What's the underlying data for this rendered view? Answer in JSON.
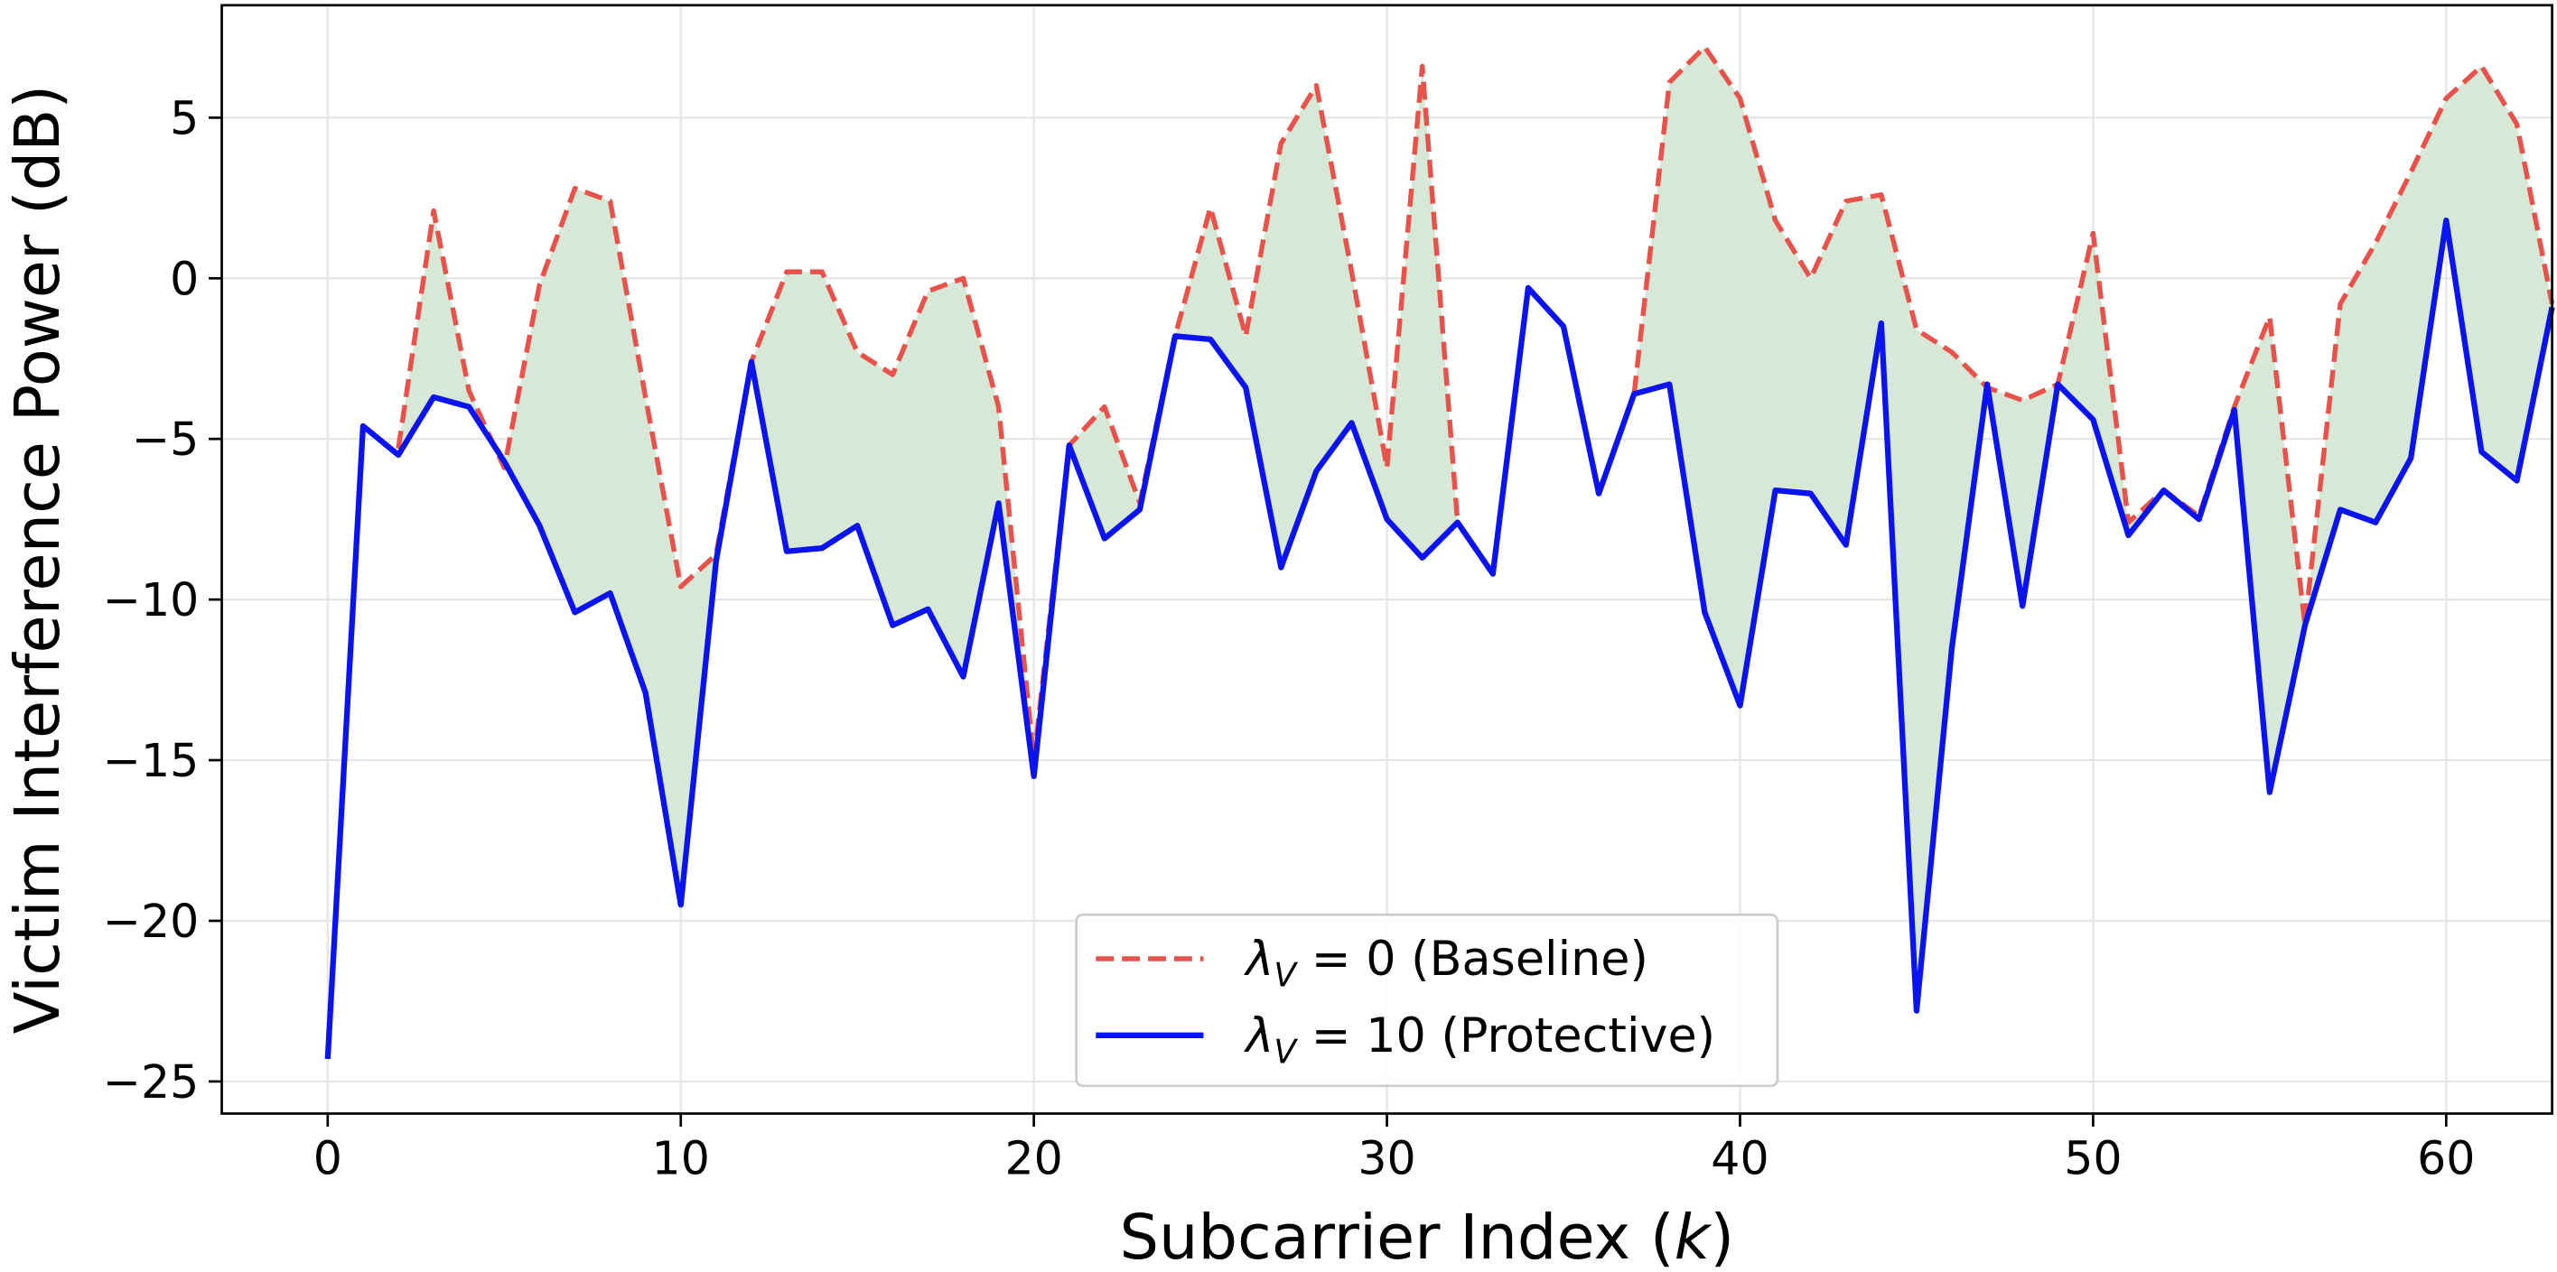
{
  "chart_data": {
    "type": "line",
    "xlabel": "Subcarrier Index (k)",
    "xlabel_parts": {
      "prefix": "Subcarrier Index (",
      "var": "k",
      "suffix": ")"
    },
    "ylabel": "Victim Interference Power (dB)",
    "xlim": [
      -3,
      63
    ],
    "ylim": [
      -26,
      8.5
    ],
    "xticks": [
      0,
      10,
      20,
      30,
      40,
      50,
      60
    ],
    "yticks": [
      5,
      0,
      -5,
      -10,
      -15,
      -20,
      -25
    ],
    "xtick_labels": [
      "0",
      "10",
      "20",
      "30",
      "40",
      "50",
      "60"
    ],
    "ytick_labels": [
      "5",
      "0",
      "−5",
      "−10",
      "−15",
      "−20",
      "−25"
    ],
    "grid": true,
    "legend_position": "lower center",
    "fill_between": {
      "color": "#d5e8d4",
      "note_region": "between baseline and protective where baseline is above"
    },
    "series": [
      {
        "name": "λV = 0 (Baseline)",
        "legend": {
          "sym": "λ",
          "sub": "V",
          "value": " = 0",
          "desc": " (Baseline)"
        },
        "color": "#e8524a",
        "style": "dashed",
        "x_start": 2,
        "values": [
          -5.3,
          2.1,
          -3.5,
          -5.9,
          -0.2,
          2.8,
          2.4,
          -3.7,
          -9.6,
          -8.6,
          -2.6,
          0.2,
          0.2,
          -2.3,
          -3.0,
          -0.4,
          0.0,
          -4.0,
          -15.0,
          -5.2,
          -4.0,
          -7.0,
          -1.8,
          2.2,
          -1.8,
          4.2,
          6.0,
          0.2,
          -5.9,
          6.6,
          -7.6,
          -9.2,
          -0.3,
          -1.5,
          -6.7,
          -3.6,
          6.1,
          7.2,
          5.6,
          1.8,
          0.0,
          2.4,
          2.6,
          -1.6,
          -2.3,
          -3.4,
          -3.8,
          -3.3,
          1.4,
          -7.6,
          -6.6,
          -7.4,
          -4.0,
          -1.2,
          -10.8,
          -0.8,
          1.1,
          3.3,
          5.6,
          6.6,
          4.8,
          -0.8
        ]
      },
      {
        "name": "λV = 10 (Protective)",
        "legend": {
          "sym": "λ",
          "sub": "V",
          "value": " = 10",
          "desc": " (Protective)"
        },
        "color": "#0a14f0",
        "style": "solid",
        "x_start": 0,
        "values": [
          -24.3,
          -4.6,
          -5.5,
          -3.7,
          -4.0,
          -5.7,
          -7.7,
          -10.4,
          -9.8,
          -12.9,
          -19.5,
          -8.8,
          -2.6,
          -8.5,
          -8.4,
          -7.7,
          -10.8,
          -10.3,
          -12.4,
          -7.0,
          -15.5,
          -5.2,
          -8.1,
          -7.2,
          -1.8,
          -1.9,
          -3.4,
          -9.0,
          -6.0,
          -4.5,
          -7.5,
          -8.7,
          -7.6,
          -9.2,
          -0.3,
          -1.5,
          -6.7,
          -3.6,
          -3.3,
          -10.4,
          -13.3,
          -6.6,
          -6.7,
          -8.3,
          -1.4,
          -22.8,
          -11.5,
          -3.3,
          -10.2,
          -3.3,
          -4.4,
          -8.0,
          -6.6,
          -7.5,
          -4.1,
          -16.0,
          -10.8,
          -7.2,
          -7.6,
          -5.6,
          1.8,
          -5.4,
          -6.3,
          -0.9
        ]
      }
    ]
  }
}
